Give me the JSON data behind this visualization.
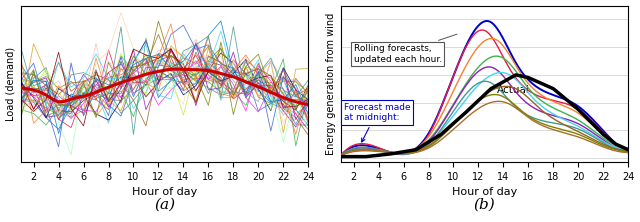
{
  "fig_width": 6.4,
  "fig_height": 2.22,
  "dpi": 100,
  "subplot_a": {
    "xlabel": "Hour of day",
    "ylabel": "Load (demand)",
    "caption": "(a)",
    "xlim": [
      1,
      24
    ],
    "xticks": [
      2,
      4,
      6,
      8,
      10,
      12,
      14,
      16,
      18,
      20,
      22,
      24
    ],
    "n_noise_lines": 35,
    "noise_colors": [
      "#e6194b",
      "#3cb44b",
      "#daa520",
      "#4363d8",
      "#f58231",
      "#911eb4",
      "#42d4f4",
      "#f032e6",
      "#469990",
      "#9a6324",
      "#800000",
      "#808000",
      "#0082c8",
      "#aa6e28",
      "#808080",
      "#a9a9a9",
      "#000075",
      "#e6beff",
      "#aaffc3",
      "#ffd8b1",
      "#fabebe",
      "#bfef45"
    ],
    "red_curve_color": "#cc0000",
    "red_curve_lw": 2.2
  },
  "subplot_b": {
    "xlabel": "Hour of day",
    "ylabel": "Energy generation from wind",
    "caption": "(b)",
    "xlim": [
      1,
      24
    ],
    "xticks": [
      2,
      4,
      6,
      8,
      10,
      12,
      14,
      16,
      18,
      20,
      22,
      24
    ],
    "annotation_rolling": "Rolling forecasts,\nupdated each hour.",
    "annotation_forecast": "Forecast made\nat midnight:",
    "annotation_actual": "Actual",
    "forecast_color": "#0000cc",
    "actual_color": "#000000",
    "grid_color": "#cccccc",
    "rolling_colors": [
      "#0000cc",
      "#e6194b",
      "#f58231",
      "#3cb44b",
      "#911eb4",
      "#42d4f4",
      "#469990",
      "#9a6324",
      "#808000",
      "#aa6e28",
      "#4363d8"
    ]
  }
}
